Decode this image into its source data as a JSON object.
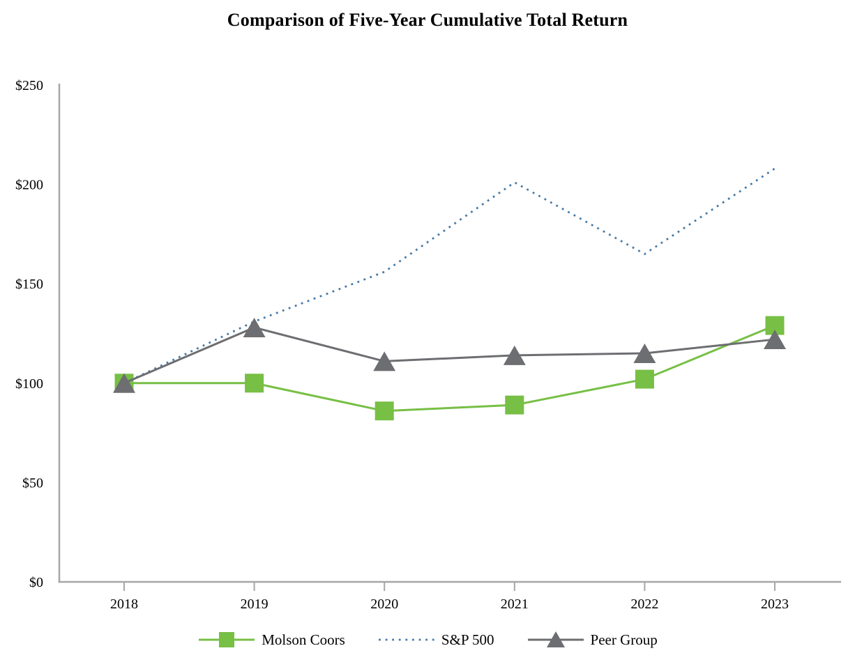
{
  "title": "Comparison of Five-Year Cumulative Total Return",
  "chart_data": {
    "type": "line",
    "title": "Comparison of Five-Year Cumulative Total Return",
    "x": [
      "2018",
      "2019",
      "2020",
      "2021",
      "2022",
      "2023"
    ],
    "series": [
      {
        "name": "Molson Coors",
        "values": [
          100,
          100,
          86,
          89,
          102,
          129
        ],
        "color": "#77bf45",
        "line_style": "solid",
        "marker": "square"
      },
      {
        "name": "S&P 500",
        "values": [
          100,
          131,
          156,
          201,
          165,
          208
        ],
        "color": "#4579a6",
        "line_style": "dotted",
        "marker": "none"
      },
      {
        "name": "Peer Group",
        "values": [
          100,
          128,
          111,
          114,
          115,
          122
        ],
        "color": "#6d6e71",
        "line_style": "solid",
        "marker": "triangle"
      }
    ],
    "xlabel": "",
    "ylabel": "",
    "ylim": [
      0,
      250
    ],
    "ytick_step": 50,
    "ytick_labels": [
      "$0",
      "$50",
      "$100",
      "$150",
      "$200",
      "$250"
    ],
    "grid": false,
    "legend_position": "bottom",
    "axis_color": "#a6a6a6",
    "text_color": "#000000"
  }
}
